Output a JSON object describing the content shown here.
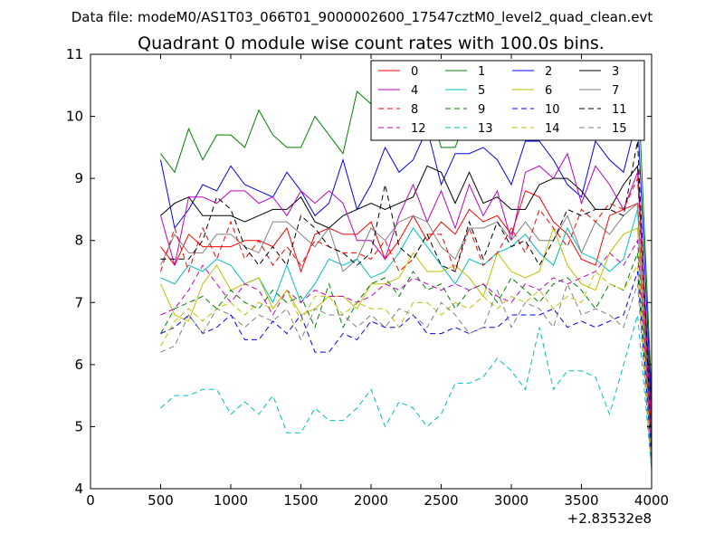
{
  "header": {
    "data_file": "Data file: modeM0/AS1T03_066T01_9000002600_17547cztM0_level2_quad_clean.evt"
  },
  "chart_data": {
    "type": "line",
    "title": "Quadrant 0 module wise count rates with 100.0s bins.",
    "xlabel": "",
    "ylabel": "",
    "x_offset_label": "+2.83532e8",
    "xlim": [
      0,
      4000
    ],
    "ylim": [
      4,
      11
    ],
    "xticks": [
      0,
      500,
      1000,
      1500,
      2000,
      2500,
      3000,
      3500,
      4000
    ],
    "yticks": [
      4,
      5,
      6,
      7,
      8,
      9,
      10,
      11
    ],
    "grid": false,
    "legend_position": "top-right",
    "x": [
      500,
      600,
      700,
      800,
      900,
      1000,
      1100,
      1200,
      1300,
      1400,
      1500,
      1600,
      1700,
      1800,
      1900,
      2000,
      2100,
      2200,
      2300,
      2400,
      2500,
      2600,
      2700,
      2800,
      2900,
      3000,
      3100,
      3200,
      3300,
      3400,
      3500,
      3600,
      3700,
      3800,
      3900,
      4000
    ],
    "series": [
      {
        "name": "0",
        "color": "#ff0000",
        "dash": "solid",
        "values": [
          7.9,
          7.6,
          8.1,
          7.9,
          7.9,
          7.9,
          8.0,
          8.0,
          7.9,
          8.2,
          7.5,
          8.1,
          8.2,
          8.1,
          8.1,
          8.3,
          7.7,
          8.0,
          8.4,
          8.0,
          8.3,
          8.1,
          8.5,
          8.3,
          8.4,
          8.1,
          8.8,
          8.7,
          8.3,
          8.1,
          7.7,
          7.6,
          8.4,
          8.5,
          8.6,
          4.7
        ]
      },
      {
        "name": "1",
        "color": "#008000",
        "dash": "solid",
        "values": [
          9.4,
          9.1,
          9.8,
          9.3,
          9.7,
          9.7,
          9.5,
          10.1,
          9.7,
          9.5,
          9.5,
          10.0,
          9.7,
          9.4,
          10.4,
          10.2,
          9.9,
          10.0,
          9.7,
          10.3,
          9.5,
          9.5,
          10.1,
          10.4,
          10.0,
          10.5,
          10.2,
          10.4,
          10.1,
          10.2,
          10.0,
          10.1,
          10.1,
          10.0,
          10.7,
          5.5
        ]
      },
      {
        "name": "2",
        "color": "#0000ff",
        "dash": "solid",
        "values": [
          9.3,
          8.2,
          8.5,
          8.9,
          8.8,
          9.2,
          8.9,
          8.8,
          8.7,
          9.1,
          8.8,
          8.4,
          8.6,
          9.3,
          8.5,
          8.9,
          9.5,
          9.1,
          9.3,
          9.8,
          8.9,
          9.4,
          9.4,
          9.5,
          9.3,
          8.9,
          9.6,
          9.6,
          9.3,
          8.9,
          8.7,
          9.6,
          9.3,
          9.1,
          10.0,
          5.3
        ]
      },
      {
        "name": "3",
        "color": "#000000",
        "dash": "solid",
        "values": [
          8.4,
          8.6,
          8.7,
          8.4,
          8.4,
          8.4,
          8.3,
          8.4,
          8.5,
          8.5,
          8.7,
          8.3,
          8.2,
          8.4,
          8.5,
          8.6,
          8.5,
          8.6,
          8.7,
          9.2,
          9.1,
          8.6,
          9.1,
          8.6,
          8.7,
          8.5,
          8.5,
          8.9,
          9.0,
          9.0,
          8.8,
          8.5,
          8.5,
          8.9,
          9.2,
          5.1
        ]
      },
      {
        "name": "4",
        "color": "#bf00bf",
        "dash": "solid",
        "values": [
          8.4,
          7.6,
          8.7,
          8.7,
          8.6,
          8.8,
          8.8,
          8.6,
          8.7,
          8.4,
          8.8,
          8.6,
          8.8,
          8.6,
          8.0,
          8.0,
          7.7,
          8.4,
          8.9,
          8.3,
          8.8,
          8.2,
          8.9,
          8.4,
          8.8,
          8.0,
          9.1,
          9.2,
          9.0,
          9.4,
          8.6,
          9.2,
          8.9,
          8.5,
          9.1,
          5.0
        ]
      },
      {
        "name": "5",
        "color": "#00bfbf",
        "dash": "solid",
        "values": [
          7.4,
          7.3,
          7.6,
          7.5,
          7.7,
          7.6,
          7.3,
          7.4,
          7.0,
          7.6,
          7.0,
          7.3,
          7.7,
          7.6,
          7.7,
          7.4,
          7.5,
          7.8,
          8.2,
          7.9,
          7.6,
          7.3,
          7.7,
          7.6,
          7.8,
          7.9,
          8.1,
          7.8,
          7.6,
          8.2,
          7.8,
          7.7,
          7.5,
          7.7,
          8.5,
          4.6
        ]
      },
      {
        "name": "6",
        "color": "#bfbf00",
        "dash": "solid",
        "values": [
          7.3,
          6.8,
          6.7,
          7.3,
          7.6,
          7.2,
          7.3,
          7.4,
          6.9,
          7.2,
          6.8,
          6.9,
          7.1,
          7.1,
          6.9,
          7.3,
          7.3,
          7.4,
          7.8,
          7.5,
          7.5,
          7.6,
          7.4,
          7.1,
          7.8,
          7.5,
          7.4,
          7.5,
          8.2,
          7.6,
          7.3,
          7.2,
          7.8,
          8.1,
          8.2,
          4.5
        ]
      },
      {
        "name": "7",
        "color": "#808080",
        "dash": "solid",
        "values": [
          7.6,
          8.1,
          7.8,
          7.8,
          8.1,
          8.1,
          7.9,
          7.8,
          8.3,
          8.3,
          8.1,
          7.9,
          8.2,
          7.5,
          7.7,
          8.2,
          8.0,
          8.3,
          8.4,
          8.3,
          7.9,
          7.7,
          8.2,
          8.2,
          8.3,
          8.0,
          8.3,
          8.0,
          8.0,
          8.4,
          7.8,
          8.3,
          8.1,
          8.4,
          8.6,
          4.4
        ]
      },
      {
        "name": "8",
        "color": "#ff0000",
        "dash": "dashed",
        "values": [
          7.5,
          8.2,
          7.5,
          8.2,
          7.7,
          8.3,
          7.7,
          8.0,
          7.6,
          7.9,
          7.6,
          8.0,
          7.9,
          7.8,
          7.8,
          7.7,
          8.0,
          7.5,
          7.7,
          8.1,
          8.1,
          7.5,
          8.2,
          7.6,
          7.8,
          8.2,
          7.8,
          8.5,
          8.2,
          7.9,
          8.5,
          8.3,
          8.6,
          8.5,
          9.0,
          4.8
        ]
      },
      {
        "name": "9",
        "color": "#008000",
        "dash": "dashed",
        "values": [
          6.5,
          6.9,
          7.0,
          7.1,
          6.9,
          7.2,
          7.0,
          6.9,
          7.2,
          7.0,
          7.1,
          6.6,
          7.3,
          6.6,
          7.0,
          7.3,
          7.4,
          7.1,
          7.5,
          7.2,
          7.3,
          6.9,
          7.2,
          7.3,
          7.0,
          7.4,
          7.2,
          7.0,
          7.3,
          7.4,
          7.2,
          6.9,
          7.3,
          7.2,
          7.8,
          4.4
        ]
      },
      {
        "name": "10",
        "color": "#0000ff",
        "dash": "dashed",
        "values": [
          6.5,
          6.6,
          6.8,
          6.5,
          6.6,
          6.8,
          6.4,
          6.4,
          6.7,
          6.5,
          6.8,
          6.2,
          6.2,
          6.5,
          6.4,
          6.7,
          6.6,
          6.6,
          6.8,
          6.5,
          6.5,
          6.6,
          6.5,
          6.6,
          6.6,
          6.8,
          6.8,
          6.8,
          6.9,
          6.6,
          6.7,
          6.6,
          6.7,
          6.8,
          7.5,
          4.5
        ]
      },
      {
        "name": "11",
        "color": "#000000",
        "dash": "dashed",
        "values": [
          7.7,
          7.7,
          7.7,
          8.0,
          8.7,
          8.5,
          7.9,
          7.6,
          7.9,
          7.6,
          8.4,
          8.2,
          7.9,
          7.8,
          7.6,
          7.8,
          8.9,
          7.9,
          7.7,
          8.1,
          7.6,
          7.5,
          8.3,
          7.7,
          8.3,
          7.9,
          8.0,
          7.6,
          8.0,
          8.5,
          8.4,
          8.5,
          8.5,
          8.4,
          9.6,
          4.6
        ]
      },
      {
        "name": "12",
        "color": "#bf00bf",
        "dash": "dashed",
        "values": [
          6.8,
          6.9,
          7.2,
          7.6,
          7.3,
          7.0,
          7.3,
          7.2,
          6.8,
          7.2,
          7.0,
          7.2,
          7.1,
          7.1,
          7.0,
          7.1,
          7.3,
          7.2,
          7.4,
          7.3,
          7.2,
          7.3,
          7.2,
          7.3,
          7.1,
          7.0,
          7.3,
          7.2,
          7.4,
          7.3,
          7.4,
          7.5,
          7.8,
          7.6,
          8.0,
          4.7
        ]
      },
      {
        "name": "13",
        "color": "#00bfbf",
        "dash": "dashed",
        "values": [
          5.3,
          5.5,
          5.5,
          5.6,
          5.6,
          5.2,
          5.4,
          5.2,
          5.5,
          4.9,
          4.9,
          5.3,
          5.1,
          5.1,
          5.3,
          5.6,
          5.0,
          5.4,
          5.3,
          5.0,
          5.2,
          5.7,
          5.7,
          5.8,
          6.1,
          5.9,
          5.6,
          6.6,
          5.6,
          5.9,
          5.9,
          5.8,
          5.2,
          6.0,
          6.8,
          4.3
        ]
      },
      {
        "name": "14",
        "color": "#bfbf00",
        "dash": "dashed",
        "values": [
          6.3,
          6.7,
          6.9,
          6.7,
          6.9,
          7.0,
          6.8,
          7.0,
          6.9,
          7.2,
          6.7,
          7.1,
          7.1,
          6.8,
          7.0,
          6.9,
          6.9,
          6.6,
          7.0,
          7.0,
          6.8,
          7.0,
          6.9,
          7.1,
          6.9,
          7.1,
          7.0,
          7.2,
          6.9,
          7.1,
          7.0,
          7.5,
          7.3,
          7.2,
          7.6,
          4.4
        ]
      },
      {
        "name": "15",
        "color": "#808080",
        "dash": "dashed",
        "values": [
          6.2,
          6.3,
          6.8,
          6.5,
          6.9,
          6.8,
          6.6,
          6.8,
          6.7,
          6.9,
          6.4,
          6.9,
          6.8,
          6.8,
          6.6,
          6.8,
          6.6,
          6.9,
          6.8,
          6.6,
          7.0,
          6.8,
          6.5,
          6.6,
          7.2,
          6.6,
          7.0,
          6.9,
          6.6,
          7.3,
          6.8,
          6.9,
          6.8,
          6.6,
          7.3,
          4.3
        ]
      }
    ]
  }
}
